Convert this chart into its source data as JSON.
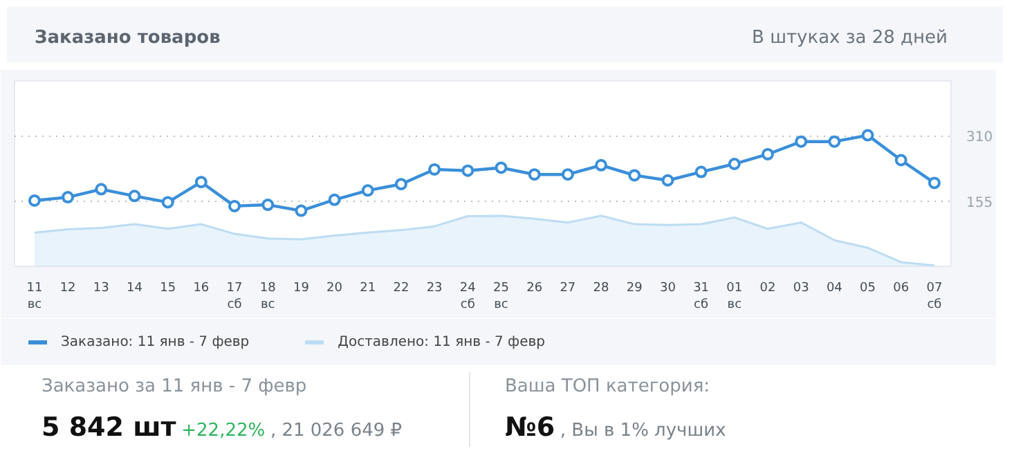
{
  "chart_data": {
    "type": "line",
    "title": "Заказано товаров",
    "subtitle": "В штуках за 28 дней",
    "categories": [
      "11\nвс",
      "12",
      "13",
      "14",
      "15",
      "16",
      "17\nсб",
      "18\nвс",
      "19",
      "20",
      "21",
      "22",
      "23",
      "24\nсб",
      "25\nвс",
      "26",
      "27",
      "28",
      "29",
      "30",
      "31\nсб",
      "01\nвс",
      "02",
      "03",
      "04",
      "05",
      "06",
      "07\nсб"
    ],
    "series": [
      {
        "name": "Заказано: 11 янв - 7 февр",
        "marker": "circle",
        "color": "#3a8fd9",
        "values": [
          156,
          164,
          183,
          167,
          152,
          200,
          143,
          146,
          132,
          158,
          180,
          195,
          230,
          227,
          234,
          218,
          218,
          240,
          216,
          204,
          224,
          243,
          266,
          296,
          296,
          311,
          252,
          198
        ]
      },
      {
        "name": "Доставлено: 11 янв - 7 февр",
        "type": "area",
        "color": "#bcdcf3",
        "values": [
          80,
          88,
          91,
          100,
          89,
          100,
          77,
          66,
          64,
          73,
          80,
          86,
          95,
          119,
          120,
          113,
          104,
          120,
          100,
          98,
          100,
          116,
          89,
          104,
          62,
          44,
          10,
          2
        ]
      }
    ],
    "ylim": [
      0,
      440
    ],
    "yticks": [
      155,
      310
    ],
    "grid": "y",
    "legend": "bottom",
    "annotations": [
      "Заказано за 11 янв - 7 февр",
      "5 842 шт",
      "+22,22%",
      ", 21 026 649 ₽",
      "Ваша ТОП категория:",
      "№6",
      ", Вы в 1% лучших"
    ]
  }
}
